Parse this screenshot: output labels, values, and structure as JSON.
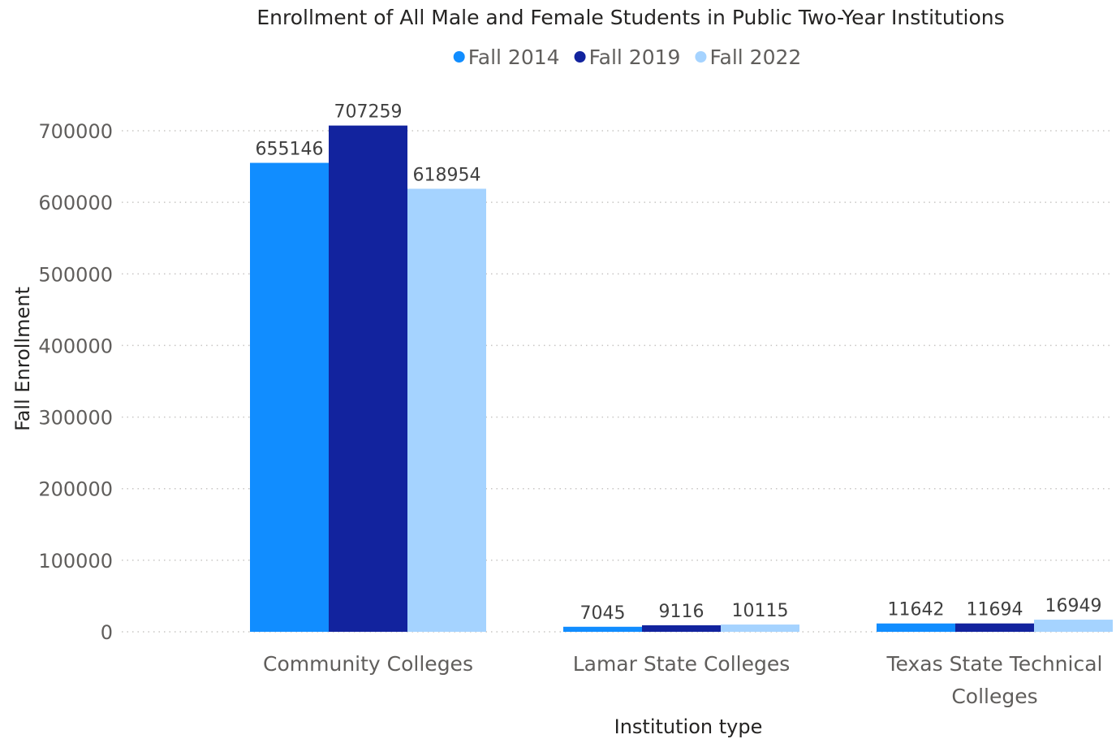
{
  "chart_data": {
    "type": "bar",
    "title": "Enrollment of All Male and Female Students in Public Two-Year Institutions",
    "xlabel": "Institution type",
    "ylabel": "Fall Enrollment",
    "categories": [
      "Community Colleges",
      "Lamar State Colleges",
      "Texas State Technical Colleges"
    ],
    "category_lines": [
      [
        "Community Colleges"
      ],
      [
        "Lamar State Colleges"
      ],
      [
        "Texas State Technical",
        "Colleges"
      ]
    ],
    "series": [
      {
        "name": "Fall 2014",
        "color": "#118DFF",
        "values": [
          655146,
          7045,
          11642
        ]
      },
      {
        "name": "Fall 2019",
        "color": "#12239E",
        "values": [
          707259,
          9116,
          11694
        ]
      },
      {
        "name": "Fall 2022",
        "color": "#A5D3FF",
        "values": [
          618954,
          10115,
          16949
        ]
      }
    ],
    "yticks": [
      0,
      100000,
      200000,
      300000,
      400000,
      500000,
      600000,
      700000
    ],
    "ylim": [
      0,
      700000
    ],
    "grid": true,
    "legend_position": "top-center"
  }
}
